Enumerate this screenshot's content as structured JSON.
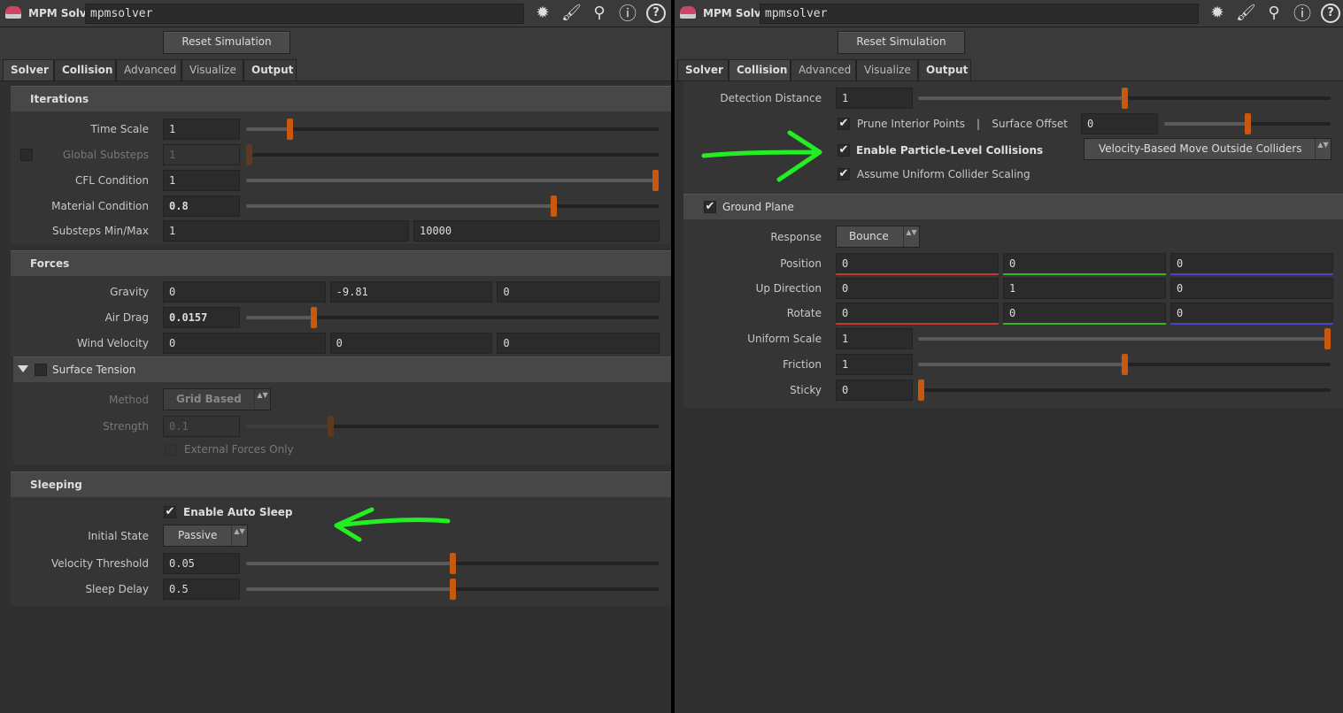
{
  "colors": {
    "accent": "#c9580f",
    "x_axis": "#c0392b",
    "y_axis": "#3cb521",
    "z_axis": "#4a43c9",
    "annotation": "#22ee22"
  },
  "panes": [
    {
      "node_type": "MPM Solver",
      "node_name": "mpmsolver",
      "toolbar_icons": [
        "gear-icon",
        "brush-icon",
        "search-icon",
        "info-icon",
        "help-icon"
      ],
      "reset_label": "Reset Simulation",
      "tabs": [
        {
          "label": "Solver",
          "bold": true
        },
        {
          "label": "Collision",
          "bold": true
        },
        {
          "label": "Advanced",
          "bold": false
        },
        {
          "label": "Visualize",
          "bold": false
        },
        {
          "label": "Output",
          "bold": true
        }
      ],
      "active_tab": "Solver",
      "sections": {
        "iterations": {
          "title": "Iterations",
          "rows": [
            {
              "label": "Time Scale",
              "value": "1",
              "slider": 0.1
            },
            {
              "label": "Global Substeps",
              "value": "1",
              "slider": 0,
              "disabled": true,
              "toggle": false
            },
            {
              "label": "CFL Condition",
              "value": "1",
              "slider": 1.0
            },
            {
              "label": "Material Condition",
              "value": "0.8",
              "slider": 0.75,
              "bold": true
            },
            {
              "label": "Substeps Min/Max",
              "values": [
                "1",
                "10000"
              ]
            }
          ]
        },
        "forces": {
          "title": "Forces",
          "rows": [
            {
              "label": "Gravity",
              "values": [
                "0",
                "-9.81",
                "0"
              ]
            },
            {
              "label": "Air Drag",
              "value": "0.0157",
              "slider": 0.16,
              "bold": true
            },
            {
              "label": "Wind Velocity",
              "values": [
                "0",
                "0",
                "0"
              ]
            }
          ]
        },
        "surface_tension": {
          "title": "Surface Tension",
          "enabled": false,
          "method_label": "Method",
          "method_value": "Grid Based",
          "strength_label": "Strength",
          "strength_value": "0.1",
          "strength_slider": 0.2,
          "external_label": "External Forces Only",
          "external_checked": false
        },
        "sleeping": {
          "title": "Sleeping",
          "auto_sleep_label": "Enable Auto Sleep",
          "auto_sleep_checked": true,
          "initial_state_label": "Initial State",
          "initial_state_value": "Passive",
          "rows": [
            {
              "label": "Velocity Threshold",
              "value": "0.05",
              "slider": 0.5
            },
            {
              "label": "Sleep Delay",
              "value": "0.5",
              "slider": 0.5
            }
          ]
        }
      }
    },
    {
      "node_type": "MPM Solver",
      "node_name": "mpmsolver",
      "toolbar_icons": [
        "gear-icon",
        "brush-icon",
        "search-icon",
        "info-icon",
        "help-icon"
      ],
      "reset_label": "Reset Simulation",
      "tabs": [
        {
          "label": "Solver",
          "bold": true
        },
        {
          "label": "Collision",
          "bold": true
        },
        {
          "label": "Advanced",
          "bold": false
        },
        {
          "label": "Visualize",
          "bold": false
        },
        {
          "label": "Output",
          "bold": true
        }
      ],
      "active_tab": "Collision",
      "collision": {
        "detection_distance": {
          "label": "Detection Distance",
          "value": "1",
          "slider": 0.5
        },
        "prune": {
          "label": "Prune Interior Points",
          "checked": true,
          "separator": "|"
        },
        "surface_offset": {
          "label": "Surface Offset",
          "value": "0",
          "slider": 0.5
        },
        "particle_level": {
          "label": "Enable Particle-Level Collisions",
          "checked": true,
          "mode": "Velocity-Based Move Outside Colliders"
        },
        "uniform_scaling": {
          "label": "Assume Uniform Collider Scaling",
          "checked": true
        },
        "ground_plane": {
          "title": "Ground Plane",
          "enabled": true,
          "response_label": "Response",
          "response_value": "Bounce",
          "vectors": [
            {
              "label": "Position",
              "values": [
                "0",
                "0",
                "0"
              ],
              "colored": true
            },
            {
              "label": "Up Direction",
              "values": [
                "0",
                "1",
                "0"
              ],
              "colored": false
            },
            {
              "label": "Rotate",
              "values": [
                "0",
                "0",
                "0"
              ],
              "colored": true
            }
          ],
          "rows": [
            {
              "label": "Uniform Scale",
              "value": "1",
              "slider": 1.0
            },
            {
              "label": "Friction",
              "value": "1",
              "slider": 0.5
            },
            {
              "label": "Sticky",
              "value": "0",
              "slider": 0
            }
          ]
        }
      }
    }
  ]
}
